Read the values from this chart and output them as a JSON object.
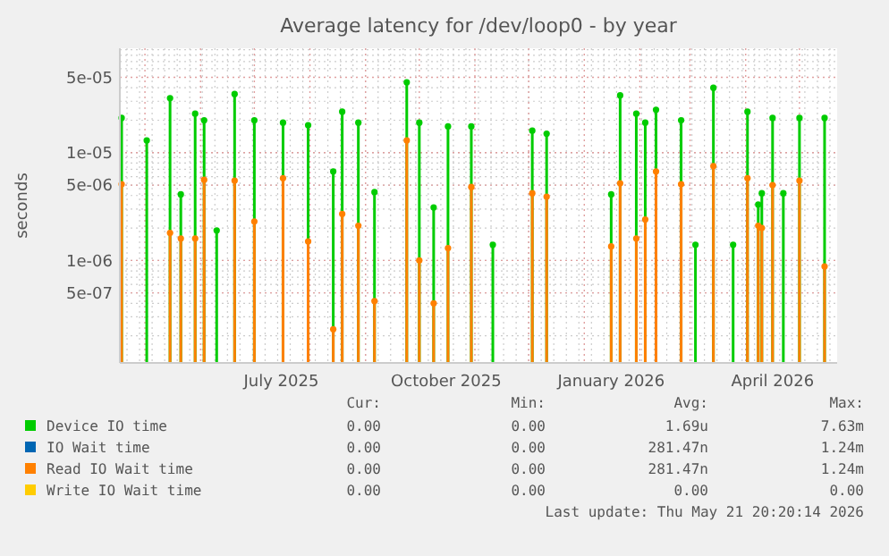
{
  "chart_data": {
    "type": "lollipop",
    "title": "Average latency for /dev/loop0 - by year",
    "ylabel": "seconds",
    "log": "y",
    "grid": true,
    "legend": "bottom",
    "xlim": [
      "2025-04-17",
      "2026-05-22"
    ],
    "xticks": [
      {
        "value": "2025-07-16",
        "label": "July 2025"
      },
      {
        "value": "2025-10-16",
        "label": "October 2025"
      },
      {
        "value": "2026-01-16",
        "label": "January 2026"
      },
      {
        "value": "2026-04-16",
        "label": "April 2026"
      }
    ],
    "ylim": [
      1.12e-07,
      9.3e-05
    ],
    "yticks": [
      {
        "value": 5e-07,
        "label": "5e-07"
      },
      {
        "value": 1e-06,
        "label": "1e-06"
      },
      {
        "value": 5e-06,
        "label": "5e-06"
      },
      {
        "value": 1e-05,
        "label": "1e-05"
      },
      {
        "value": 5e-05,
        "label": "5e-05"
      }
    ],
    "x": [
      "2025-04-18",
      "2025-05-02",
      "2025-05-15",
      "2025-05-21",
      "2025-05-29",
      "2025-06-03",
      "2025-06-10",
      "2025-06-20",
      "2025-07-01",
      "2025-07-17",
      "2025-07-31",
      "2025-08-14",
      "2025-08-19",
      "2025-08-28",
      "2025-09-06",
      "2025-09-24",
      "2025-10-01",
      "2025-10-09",
      "2025-10-17",
      "2025-10-30",
      "2025-11-11",
      "2025-12-03",
      "2025-12-11",
      "2026-01-16",
      "2026-01-21",
      "2026-01-30",
      "2026-02-04",
      "2026-02-10",
      "2026-02-24",
      "2026-03-04",
      "2026-03-14",
      "2026-03-25",
      "2026-04-02",
      "2026-04-08",
      "2026-04-10",
      "2026-04-16",
      "2026-04-22",
      "2026-05-01",
      "2026-05-15"
    ],
    "series": [
      {
        "name": "Device IO time",
        "color": "#00cc00",
        "values": [
          2.1e-05,
          1.3e-05,
          3.2e-05,
          4.1e-06,
          2.3e-05,
          2e-05,
          1.9e-06,
          3.5e-05,
          2e-05,
          1.9e-05,
          1.8e-05,
          6.7e-06,
          2.4e-05,
          1.9e-05,
          4.3e-06,
          4.5e-05,
          1.9e-05,
          3.1e-06,
          1.75e-05,
          1.75e-05,
          1.4e-06,
          1.6e-05,
          1.5e-05,
          4.1e-06,
          3.4e-05,
          2.3e-05,
          1.9e-05,
          2.5e-05,
          2e-05,
          1.4e-06,
          4e-05,
          1.4e-06,
          2.4e-05,
          3.3e-06,
          4.2e-06,
          2.1e-05,
          4.2e-06,
          2.1e-05,
          2.1e-05
        ]
      },
      {
        "name": "IO Wait time",
        "color": "#0066b3",
        "values": [
          null,
          null,
          null,
          null,
          null,
          null,
          null,
          null,
          null,
          null,
          null,
          null,
          null,
          null,
          null,
          null,
          null,
          null,
          null,
          null,
          null,
          null,
          null,
          null,
          null,
          null,
          null,
          null,
          null,
          null,
          null,
          null,
          null,
          null,
          null,
          null,
          null,
          null,
          null
        ]
      },
      {
        "name": "Read IO Wait time",
        "color": "#ff8000",
        "values": [
          5.1e-06,
          null,
          1.8e-06,
          1.6e-06,
          1.6e-06,
          5.6e-06,
          null,
          5.5e-06,
          2.3e-06,
          5.8e-06,
          1.5e-06,
          2.3e-07,
          2.7e-06,
          2.1e-06,
          4.2e-07,
          1.3e-05,
          1e-06,
          4e-07,
          1.3e-06,
          4.8e-06,
          null,
          4.2e-06,
          3.9e-06,
          1.35e-06,
          5.2e-06,
          1.6e-06,
          2.4e-06,
          6.7e-06,
          5.1e-06,
          null,
          7.5e-06,
          null,
          5.8e-06,
          2.1e-06,
          2e-06,
          5e-06,
          null,
          5.5e-06,
          8.8e-07
        ]
      },
      {
        "name": "Write IO Wait time",
        "color": "#ffcc00",
        "values": [
          null,
          null,
          null,
          null,
          null,
          null,
          null,
          null,
          null,
          null,
          null,
          null,
          null,
          null,
          null,
          null,
          null,
          null,
          null,
          null,
          null,
          null,
          null,
          null,
          null,
          null,
          null,
          null,
          null,
          null,
          null,
          null,
          null,
          null,
          null,
          null,
          null,
          null,
          null
        ]
      }
    ],
    "annotations": [
      "Cur:",
      "Min:",
      "Avg:",
      "Max:",
      "0.00",
      "0.00",
      "1.69u",
      "7.63m",
      "0.00",
      "0.00",
      "281.47n",
      "1.24m",
      "0.00",
      "0.00",
      "281.47n",
      "1.24m",
      "0.00",
      "0.00",
      "0.00",
      "0.00",
      "Last update: Thu May 21 20:20:14 2026"
    ]
  }
}
